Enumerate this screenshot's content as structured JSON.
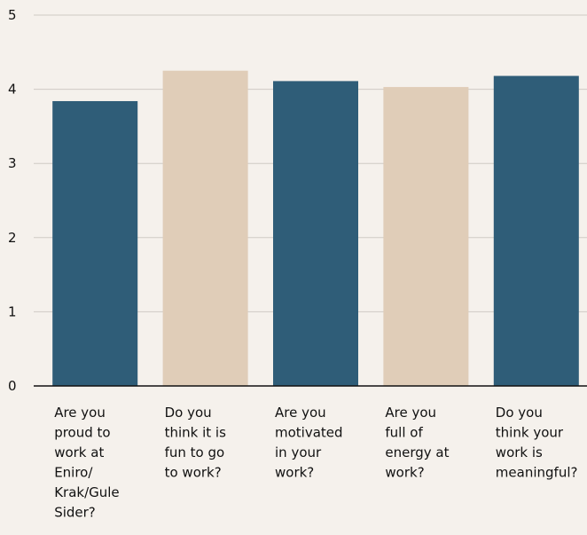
{
  "chart_data": {
    "type": "bar",
    "categories": [
      [
        "Are you",
        "proud to",
        "work at",
        "Eniro/",
        "Krak/Gule",
        "Sider?"
      ],
      [
        "Do you",
        "think it is",
        "fun to go",
        "to work?"
      ],
      [
        "Are you",
        "motivated",
        "in your",
        "work?"
      ],
      [
        "Are you",
        "full of",
        "energy at",
        "work?"
      ],
      [
        "Do you",
        "think your",
        "work is",
        "meaningful?"
      ]
    ],
    "values": [
      3.84,
      4.25,
      4.11,
      4.03,
      4.18
    ],
    "yticks": [
      "0",
      "1",
      "2",
      "3",
      "4",
      "5"
    ],
    "ylim": [
      0,
      5
    ],
    "grid": true,
    "colors": [
      "#2f5d78",
      "#e0cdb8",
      "#2f5d78",
      "#e0cdb8",
      "#2f5d78"
    ],
    "gridColor": "#cfcac4",
    "axisColor": "#111111"
  }
}
